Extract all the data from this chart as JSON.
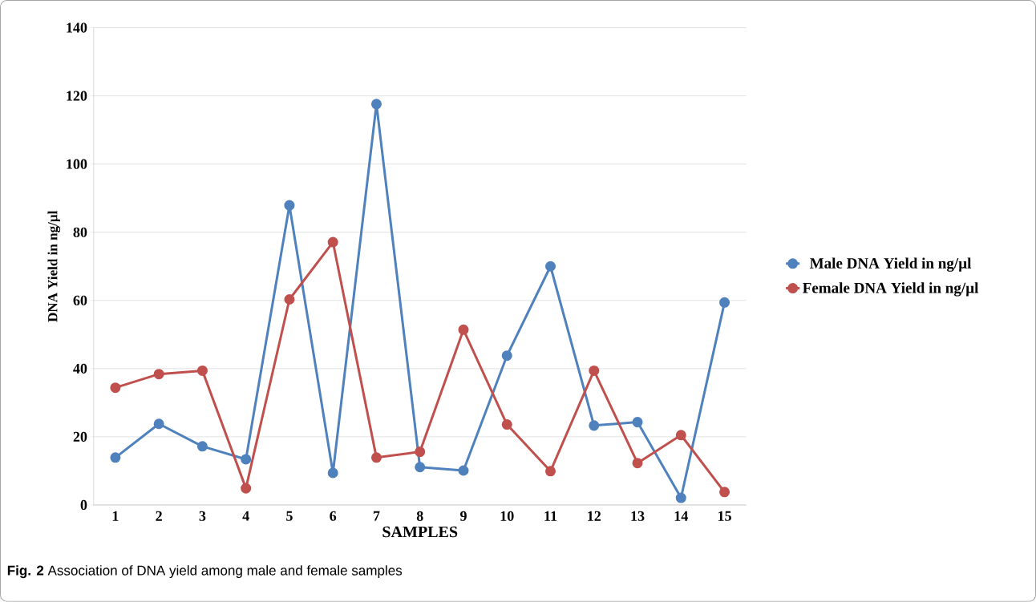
{
  "chart_data": {
    "type": "line",
    "xlabel": "SAMPLES",
    "ylabel": "DNA Yield in ng/µl",
    "categories": [
      "1",
      "2",
      "3",
      "4",
      "5",
      "6",
      "7",
      "8",
      "9",
      "10",
      "11",
      "12",
      "13",
      "14",
      "15"
    ],
    "series": [
      {
        "name": "Male DNA Yield in ng/µl",
        "color": "#4f81bd",
        "values": [
          13.9,
          23.8,
          17.2,
          13.4,
          87.9,
          9.4,
          117.6,
          11.1,
          10.1,
          43.8,
          70,
          23.3,
          24.3,
          2.1,
          59.4
        ]
      },
      {
        "name": "Female DNA Yield in ng/µl",
        "color": "#c0504d",
        "values": [
          34.4,
          38.4,
          39.4,
          4.9,
          60.3,
          77.1,
          13.9,
          15.6,
          51.4,
          23.6,
          9.9,
          39.4,
          12.3,
          20.5,
          3.8
        ]
      }
    ],
    "ylim": [
      0,
      140
    ],
    "yticks": [
      0,
      20,
      40,
      60,
      80,
      100,
      120,
      140
    ],
    "grid": "y",
    "legend": "right",
    "marker": "circle",
    "line_style": "solid",
    "annotations": [
      "**Fig. 2** Association of DNA yield among male and female samples"
    ]
  }
}
